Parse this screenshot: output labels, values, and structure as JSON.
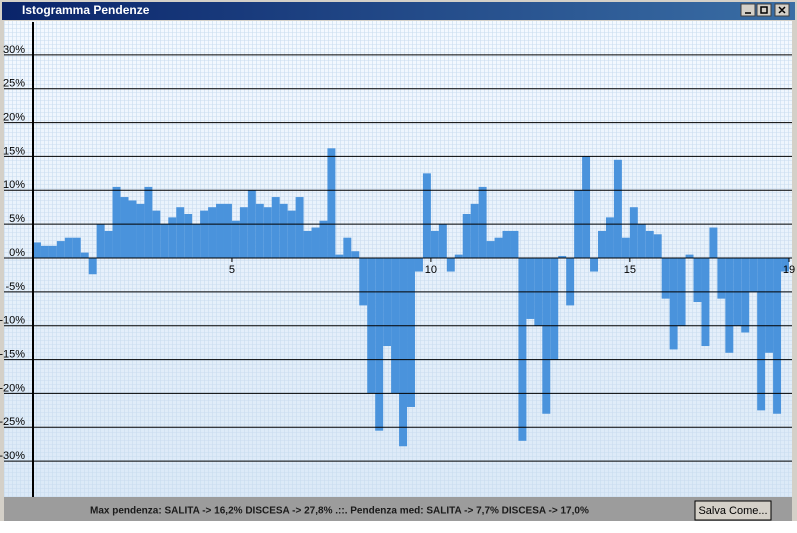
{
  "window": {
    "title": "Istogramma Pendenze"
  },
  "chart_data": {
    "type": "histogram",
    "bins": [
      0,
      0.2,
      0.4,
      0.6,
      0.8,
      1,
      1.2,
      1.4,
      1.6,
      1.8,
      2,
      2.2,
      2.4,
      2.6,
      2.8,
      3,
      3.2,
      3.4,
      3.6,
      3.8,
      4,
      4.2,
      4.4,
      4.6,
      4.8,
      5,
      5.2,
      5.4,
      5.6,
      5.8,
      6,
      6.2,
      6.4,
      6.6,
      6.8,
      7,
      7.2,
      7.4,
      7.6,
      7.8,
      8,
      8.2,
      8.4,
      8.6,
      8.8,
      9,
      9.2,
      9.4,
      9.6,
      9.8,
      10,
      10.2,
      10.4,
      10.6,
      10.8,
      11,
      11.2,
      11.4,
      11.6,
      11.8,
      12,
      12.2,
      12.4,
      12.6,
      12.8,
      13,
      13.2,
      13.4,
      13.6,
      13.8,
      14,
      14.2,
      14.4,
      14.6,
      14.8,
      15,
      15.2,
      15.4,
      15.6,
      15.8,
      16,
      16.2,
      16.4,
      16.6,
      16.8,
      17,
      17.2,
      17.4,
      17.6,
      17.8,
      18,
      18.2,
      18.4,
      18.6,
      18.8,
      19
    ],
    "values": [
      2.3,
      1.8,
      1.8,
      2.5,
      3,
      3,
      0.8,
      -2.4,
      5,
      4,
      10.5,
      9,
      8.5,
      8,
      10.5,
      7,
      5,
      6,
      7.5,
      6.5,
      5,
      7,
      7.5,
      8,
      8,
      5.5,
      7.5,
      10,
      8,
      7.5,
      9,
      8,
      7,
      9,
      4,
      4.5,
      5.5,
      16.2,
      0.5,
      3,
      1,
      -7,
      -20,
      -25.5,
      -13,
      -20,
      -27.8,
      -22,
      -2,
      12.5,
      4,
      5,
      -2,
      0.5,
      6.5,
      8,
      10.5,
      2.5,
      3,
      4,
      4,
      -27,
      -9,
      -10,
      -23,
      -15,
      0.3,
      -7,
      10,
      15,
      -2,
      4,
      6,
      14.5,
      3,
      7.5,
      5,
      4,
      3.5,
      -6,
      -13.5,
      -10,
      0.5,
      -6.5,
      -13,
      4.5,
      -6,
      -14,
      -10,
      -11,
      -5,
      -22.5,
      -14,
      -23,
      -2
    ],
    "color": "#4a93dc",
    "xlim": [
      0,
      19
    ],
    "xticks": [
      5,
      10,
      15,
      19
    ],
    "ylim": [
      -35,
      35
    ],
    "yticks": [
      {
        "value": 30,
        "label": "30%"
      },
      {
        "value": 25,
        "label": "25%"
      },
      {
        "value": 20,
        "label": "20%"
      },
      {
        "value": 15,
        "label": "15%"
      },
      {
        "value": 10,
        "label": "10%"
      },
      {
        "value": 5,
        "label": "5%"
      },
      {
        "value": 0,
        "label": "0%"
      },
      {
        "value": -5,
        "label": "-5%"
      },
      {
        "value": -10,
        "label": "-10%"
      },
      {
        "value": -15,
        "label": "-15%"
      },
      {
        "value": -20,
        "label": "-20%"
      },
      {
        "value": -25,
        "label": "-25%"
      },
      {
        "value": -30,
        "label": "-30%"
      }
    ],
    "grid": true
  },
  "footer": {
    "summary": "Max pendenza: SALITA -> 16,2% DISCESA -> 27,8% .::. Pendenza med: SALITA -> 7,7% DISCESA -> 17,0%",
    "button": "Salva Come..."
  }
}
